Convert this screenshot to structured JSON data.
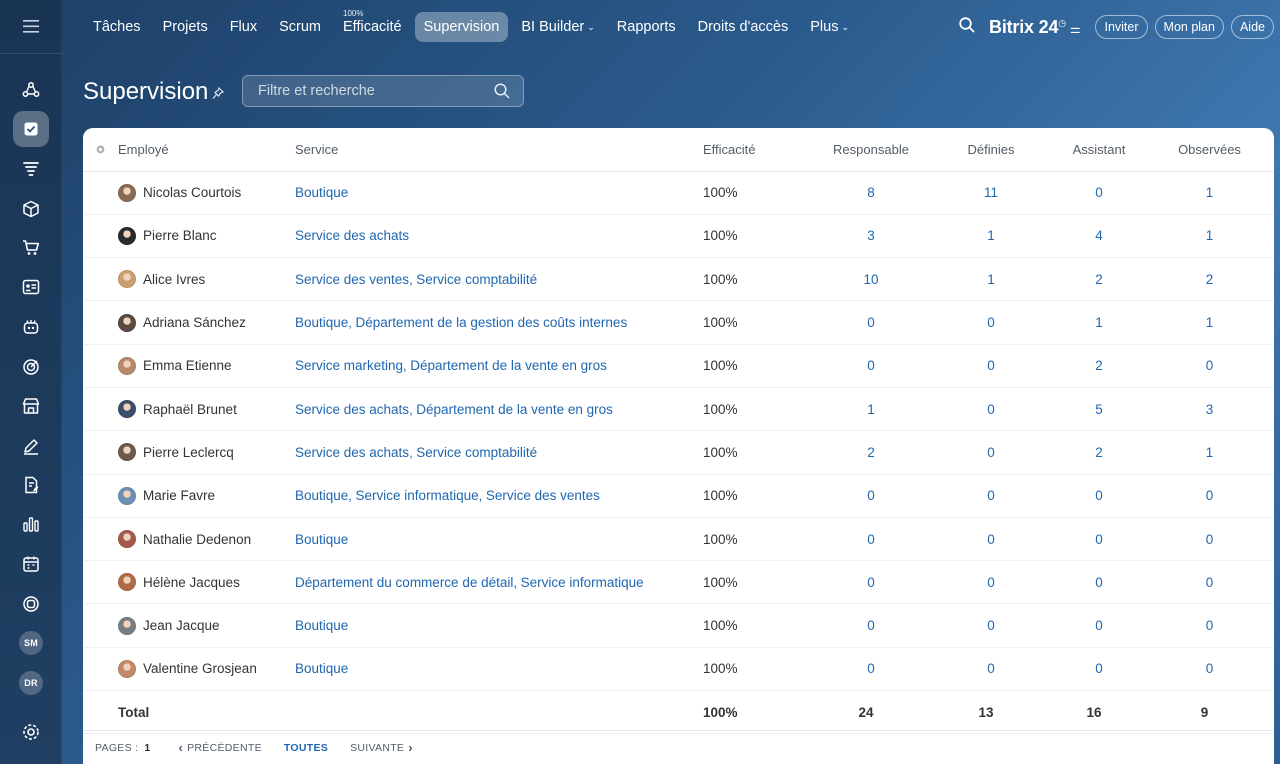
{
  "topbar": {
    "tabs": [
      {
        "label": "Tâches",
        "active": false
      },
      {
        "label": "Projets",
        "active": false
      },
      {
        "label": "Flux",
        "active": false
      },
      {
        "label": "Scrum",
        "active": false
      },
      {
        "label": "Efficacité",
        "active": false,
        "superscript": "100%"
      },
      {
        "label": "Supervision",
        "active": true
      },
      {
        "label": "BI Builder",
        "active": false,
        "dropdown": true
      },
      {
        "label": "Rapports",
        "active": false
      },
      {
        "label": "Droits d'accès",
        "active": false
      },
      {
        "label": "Plus",
        "active": false,
        "dropdown": true
      }
    ],
    "brand": "Bitrix 24",
    "invite_label": "Inviter",
    "plan_label": "Mon plan",
    "help_label": "Aide"
  },
  "sidebar": {
    "items": [
      {
        "icon": "flow-icon"
      },
      {
        "icon": "tasks-checkbox-icon",
        "active": true
      },
      {
        "icon": "funnel-icon"
      },
      {
        "icon": "box-icon"
      },
      {
        "icon": "cart-icon"
      },
      {
        "icon": "contact-card-icon"
      },
      {
        "icon": "robot-icon"
      },
      {
        "icon": "target-icon"
      },
      {
        "icon": "store-icon"
      },
      {
        "icon": "sign-pen-icon"
      },
      {
        "icon": "document-edit-icon"
      },
      {
        "icon": "analytics-bars-icon"
      },
      {
        "icon": "calendar-icon"
      },
      {
        "icon": "support-icon"
      }
    ],
    "avatars": [
      "SM",
      "DR"
    ]
  },
  "page": {
    "title": "Supervision",
    "filter_placeholder": "Filtre et recherche"
  },
  "table": {
    "headers": {
      "employee": "Employé",
      "service": "Service",
      "efficiency": "Efficacité",
      "responsible": "Responsable",
      "defined": "Définies",
      "assistant": "Assistant",
      "observed": "Observées"
    },
    "rows": [
      {
        "name": "Nicolas Courtois",
        "services": [
          "Boutique"
        ],
        "efficiency": "100%",
        "responsible": "8",
        "defined": "11",
        "assistant": "0",
        "observed": "1",
        "avatar_color": "#8a6a55"
      },
      {
        "name": "Pierre Blanc",
        "services": [
          "Service des achats"
        ],
        "efficiency": "100%",
        "responsible": "3",
        "defined": "1",
        "assistant": "4",
        "observed": "1",
        "avatar_color": "#2b2b2b"
      },
      {
        "name": "Alice Ivres",
        "services": [
          "Service des ventes",
          "Service comptabilité"
        ],
        "efficiency": "100%",
        "responsible": "10",
        "defined": "1",
        "assistant": "2",
        "observed": "2",
        "avatar_color": "#c9a070"
      },
      {
        "name": "Adriana Sánchez",
        "services": [
          "Boutique",
          "Département de la gestion des coûts internes"
        ],
        "efficiency": "100%",
        "responsible": "0",
        "defined": "0",
        "assistant": "1",
        "observed": "1",
        "avatar_color": "#5a4a44"
      },
      {
        "name": "Emma Etienne",
        "services": [
          "Service marketing",
          "Département de la vente en gros"
        ],
        "efficiency": "100%",
        "responsible": "0",
        "defined": "0",
        "assistant": "2",
        "observed": "0",
        "avatar_color": "#b78a6c"
      },
      {
        "name": "Raphaël Brunet",
        "services": [
          "Service des achats",
          "Département de la vente en gros"
        ],
        "efficiency": "100%",
        "responsible": "1",
        "defined": "0",
        "assistant": "5",
        "observed": "3",
        "avatar_color": "#3c4f6a"
      },
      {
        "name": "Pierre Leclercq",
        "services": [
          "Service des achats",
          "Service comptabilité"
        ],
        "efficiency": "100%",
        "responsible": "2",
        "defined": "0",
        "assistant": "2",
        "observed": "1",
        "avatar_color": "#6b5a50"
      },
      {
        "name": "Marie Favre",
        "services": [
          "Boutique",
          "Service informatique",
          "Service des ventes"
        ],
        "efficiency": "100%",
        "responsible": "0",
        "defined": "0",
        "assistant": "0",
        "observed": "0",
        "avatar_color": "#6d8fb3"
      },
      {
        "name": "Nathalie Dedenon",
        "services": [
          "Boutique"
        ],
        "efficiency": "100%",
        "responsible": "0",
        "defined": "0",
        "assistant": "0",
        "observed": "0",
        "avatar_color": "#a5594a"
      },
      {
        "name": "Hélène Jacques",
        "services": [
          "Département du commerce de détail",
          "Service informatique"
        ],
        "efficiency": "100%",
        "responsible": "0",
        "defined": "0",
        "assistant": "0",
        "observed": "0",
        "avatar_color": "#b06a48"
      },
      {
        "name": "Jean Jacque",
        "services": [
          "Boutique"
        ],
        "efficiency": "100%",
        "responsible": "0",
        "defined": "0",
        "assistant": "0",
        "observed": "0",
        "avatar_color": "#7a7d80"
      },
      {
        "name": "Valentine Grosjean",
        "services": [
          "Boutique"
        ],
        "efficiency": "100%",
        "responsible": "0",
        "defined": "0",
        "assistant": "0",
        "observed": "0",
        "avatar_color": "#c08a6a"
      }
    ],
    "total": {
      "label": "Total",
      "efficiency": "100%",
      "responsible": "24",
      "defined": "13",
      "assistant": "16",
      "observed": "9"
    }
  },
  "pager": {
    "pages_label": "PAGES :",
    "current_page": "1",
    "prev_label": "PRÉCÉDENTE",
    "all_label": "TOUTES",
    "next_label": "SUIVANTE"
  }
}
